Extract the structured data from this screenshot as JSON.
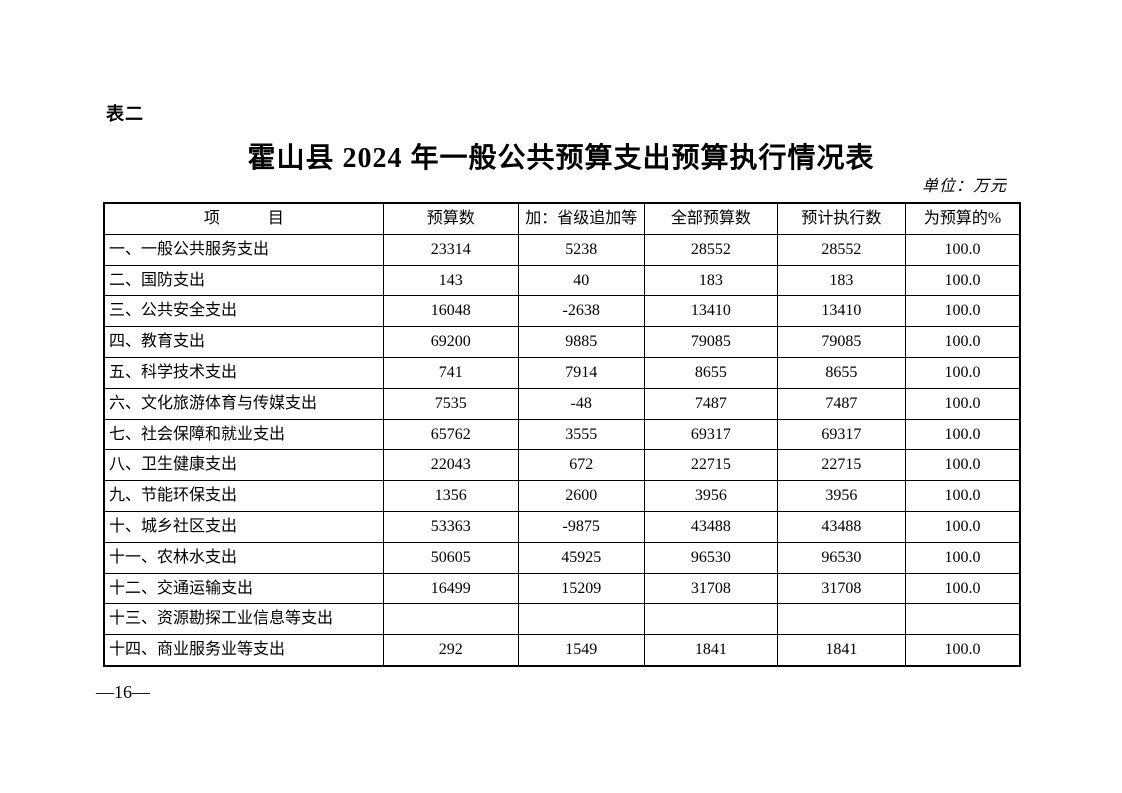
{
  "page": {
    "table_label": "表二",
    "title": "霍山县 2024 年一般公共预算支出预算执行情况表",
    "unit_note": "单位：万元",
    "page_number": "—16—"
  },
  "table": {
    "headers": [
      "项　　　目",
      "预算数",
      "加：省级追加等",
      "全部预算数",
      "预计执行数",
      "为预算的%"
    ],
    "rows": [
      {
        "item": "一、一般公共服务支出",
        "budget": "23314",
        "provincial_addition": "5238",
        "total_budget": "28552",
        "expected_execution": "28552",
        "pct_of_budget": "100.0"
      },
      {
        "item": "二、国防支出",
        "budget": "143",
        "provincial_addition": "40",
        "total_budget": "183",
        "expected_execution": "183",
        "pct_of_budget": "100.0"
      },
      {
        "item": "三、公共安全支出",
        "budget": "16048",
        "provincial_addition": "-2638",
        "total_budget": "13410",
        "expected_execution": "13410",
        "pct_of_budget": "100.0"
      },
      {
        "item": "四、教育支出",
        "budget": "69200",
        "provincial_addition": "9885",
        "total_budget": "79085",
        "expected_execution": "79085",
        "pct_of_budget": "100.0"
      },
      {
        "item": "五、科学技术支出",
        "budget": "741",
        "provincial_addition": "7914",
        "total_budget": "8655",
        "expected_execution": "8655",
        "pct_of_budget": "100.0"
      },
      {
        "item": "六、文化旅游体育与传媒支出",
        "budget": "7535",
        "provincial_addition": "-48",
        "total_budget": "7487",
        "expected_execution": "7487",
        "pct_of_budget": "100.0"
      },
      {
        "item": "七、社会保障和就业支出",
        "budget": "65762",
        "provincial_addition": "3555",
        "total_budget": "69317",
        "expected_execution": "69317",
        "pct_of_budget": "100.0"
      },
      {
        "item": "八、卫生健康支出",
        "budget": "22043",
        "provincial_addition": "672",
        "total_budget": "22715",
        "expected_execution": "22715",
        "pct_of_budget": "100.0"
      },
      {
        "item": "九、节能环保支出",
        "budget": "1356",
        "provincial_addition": "2600",
        "total_budget": "3956",
        "expected_execution": "3956",
        "pct_of_budget": "100.0"
      },
      {
        "item": "十、城乡社区支出",
        "budget": "53363",
        "provincial_addition": "-9875",
        "total_budget": "43488",
        "expected_execution": "43488",
        "pct_of_budget": "100.0"
      },
      {
        "item": "十一、农林水支出",
        "budget": "50605",
        "provincial_addition": "45925",
        "total_budget": "96530",
        "expected_execution": "96530",
        "pct_of_budget": "100.0"
      },
      {
        "item": "十二、交通运输支出",
        "budget": "16499",
        "provincial_addition": "15209",
        "total_budget": "31708",
        "expected_execution": "31708",
        "pct_of_budget": "100.0"
      },
      {
        "item": "十三、资源勘探工业信息等支出",
        "budget": "",
        "provincial_addition": "",
        "total_budget": "",
        "expected_execution": "",
        "pct_of_budget": ""
      },
      {
        "item": "十四、商业服务业等支出",
        "budget": "292",
        "provincial_addition": "1549",
        "total_budget": "1841",
        "expected_execution": "1841",
        "pct_of_budget": "100.0"
      }
    ]
  }
}
